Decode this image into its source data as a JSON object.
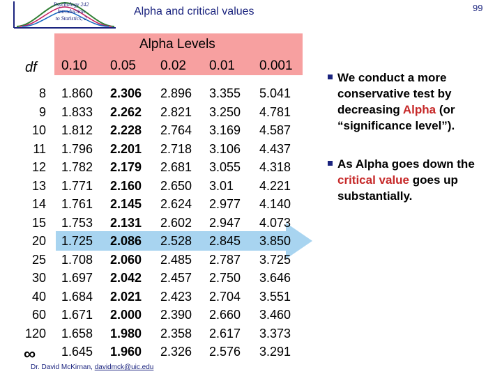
{
  "logo": {
    "text_line1": "Psychology 242",
    "text_line2": "Introduction",
    "text_line3": "to Statistics, 2"
  },
  "title": "Alpha and critical values",
  "slide_number": "99",
  "table": {
    "header_label": "Alpha Levels",
    "df_label": "df",
    "columns": [
      "0.10",
      "0.05",
      "0.02",
      "0.01",
      "0.001"
    ],
    "rows": [
      {
        "df": "8",
        "values": [
          "1.860",
          "2.306",
          "2.896",
          "3.355",
          "5.041"
        ]
      },
      {
        "df": "9",
        "values": [
          "1.833",
          "2.262",
          "2.821",
          "3.250",
          "4.781"
        ]
      },
      {
        "df": "10",
        "values": [
          "1.812",
          "2.228",
          "2.764",
          "3.169",
          "4.587"
        ]
      },
      {
        "df": "11",
        "values": [
          "1.796",
          "2.201",
          "2.718",
          "3.106",
          "4.437"
        ]
      },
      {
        "df": "12",
        "values": [
          "1.782",
          "2.179",
          "2.681",
          "3.055",
          "4.318"
        ]
      },
      {
        "df": "13",
        "values": [
          "1.771",
          "2.160",
          "2.650",
          "3.01",
          "4.221"
        ]
      },
      {
        "df": "14",
        "values": [
          "1.761",
          "2.145",
          "2.624",
          "2.977",
          "4.140"
        ]
      },
      {
        "df": "15",
        "values": [
          "1.753",
          "2.131",
          "2.602",
          "2.947",
          "4.073"
        ]
      },
      {
        "df": "20",
        "values": [
          "1.725",
          "2.086",
          "2.528",
          "2.845",
          "3.850"
        ]
      },
      {
        "df": "25",
        "values": [
          "1.708",
          "2.060",
          "2.485",
          "2.787",
          "3.725"
        ]
      },
      {
        "df": "30",
        "values": [
          "1.697",
          "2.042",
          "2.457",
          "2.750",
          "3.646"
        ]
      },
      {
        "df": "40",
        "values": [
          "1.684",
          "2.021",
          "2.423",
          "2.704",
          "3.551"
        ]
      },
      {
        "df": "60",
        "values": [
          "1.671",
          "2.000",
          "2.390",
          "2.660",
          "3.460"
        ]
      },
      {
        "df": "120",
        "values": [
          "1.658",
          "1.980",
          "2.358",
          "2.617",
          "3.373"
        ]
      },
      {
        "df": "∞",
        "values": [
          "1.645",
          "1.960",
          "2.326",
          "2.576",
          "3.291"
        ]
      }
    ]
  },
  "bullets": [
    {
      "before": "We conduct a more conservative test by decreasing ",
      "highlight": "Alpha",
      "after": " (or “significance level”)."
    },
    {
      "before": "As Alpha goes down the ",
      "highlight": "critical value",
      "after": " goes up substantially."
    }
  ],
  "footer": {
    "author": "Dr. David McKirnan,",
    "email": "davidmck@uic.edu"
  },
  "colors": {
    "band": "#f7a0a0",
    "arrow": "#a8d4f0",
    "highlight": "#c62828",
    "accent": "#1a237e"
  }
}
